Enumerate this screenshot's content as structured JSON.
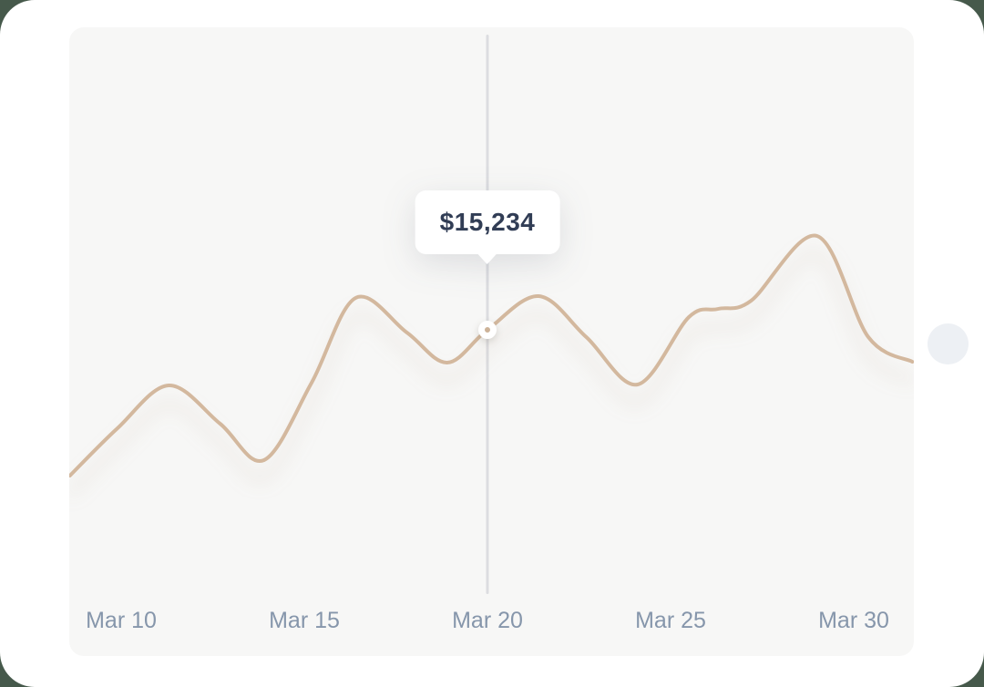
{
  "theme": {
    "page_background": "#46594b",
    "card_background": "#ffffff",
    "panel_background": "#f7f7f6",
    "crosshair_color": "#dcdde0",
    "label_color": "#8696ab",
    "tooltip_text_color": "#313d55"
  },
  "chart_data": {
    "type": "line",
    "title": "",
    "xlabel": "",
    "ylabel": "",
    "grid": false,
    "legend": false,
    "line_color": "#d3b89e",
    "marker_color": "#ccb298",
    "x_labels": [
      "Mar 10",
      "Mar 15",
      "Mar 20",
      "Mar 25",
      "Mar 30"
    ],
    "x_label_days": [
      10,
      15,
      20,
      25,
      30
    ],
    "xlim_days": [
      8.6,
      31.6
    ],
    "tooltip": {
      "value": "$15,234"
    },
    "highlight": {
      "day": 20,
      "value": 15234,
      "x_label": "Mar 20"
    },
    "points": [
      {
        "day": 8.6,
        "value": 11234
      },
      {
        "day": 9.9,
        "value": 12534
      },
      {
        "day": 11.3,
        "value": 13709
      },
      {
        "day": 12.7,
        "value": 12659
      },
      {
        "day": 13.9,
        "value": 11659
      },
      {
        "day": 15.2,
        "value": 13784
      },
      {
        "day": 16.4,
        "value": 16109
      },
      {
        "day": 17.8,
        "value": 15159
      },
      {
        "day": 18.9,
        "value": 14334
      },
      {
        "day": 20.0,
        "value": 15234
      },
      {
        "day": 21.4,
        "value": 16159
      },
      {
        "day": 22.7,
        "value": 15034
      },
      {
        "day": 24.1,
        "value": 13734
      },
      {
        "day": 25.5,
        "value": 15584
      },
      {
        "day": 26.3,
        "value": 15809
      },
      {
        "day": 27.2,
        "value": 16034
      },
      {
        "day": 29.0,
        "value": 17809
      },
      {
        "day": 30.4,
        "value": 15034
      },
      {
        "day": 31.6,
        "value": 14359
      }
    ]
  }
}
